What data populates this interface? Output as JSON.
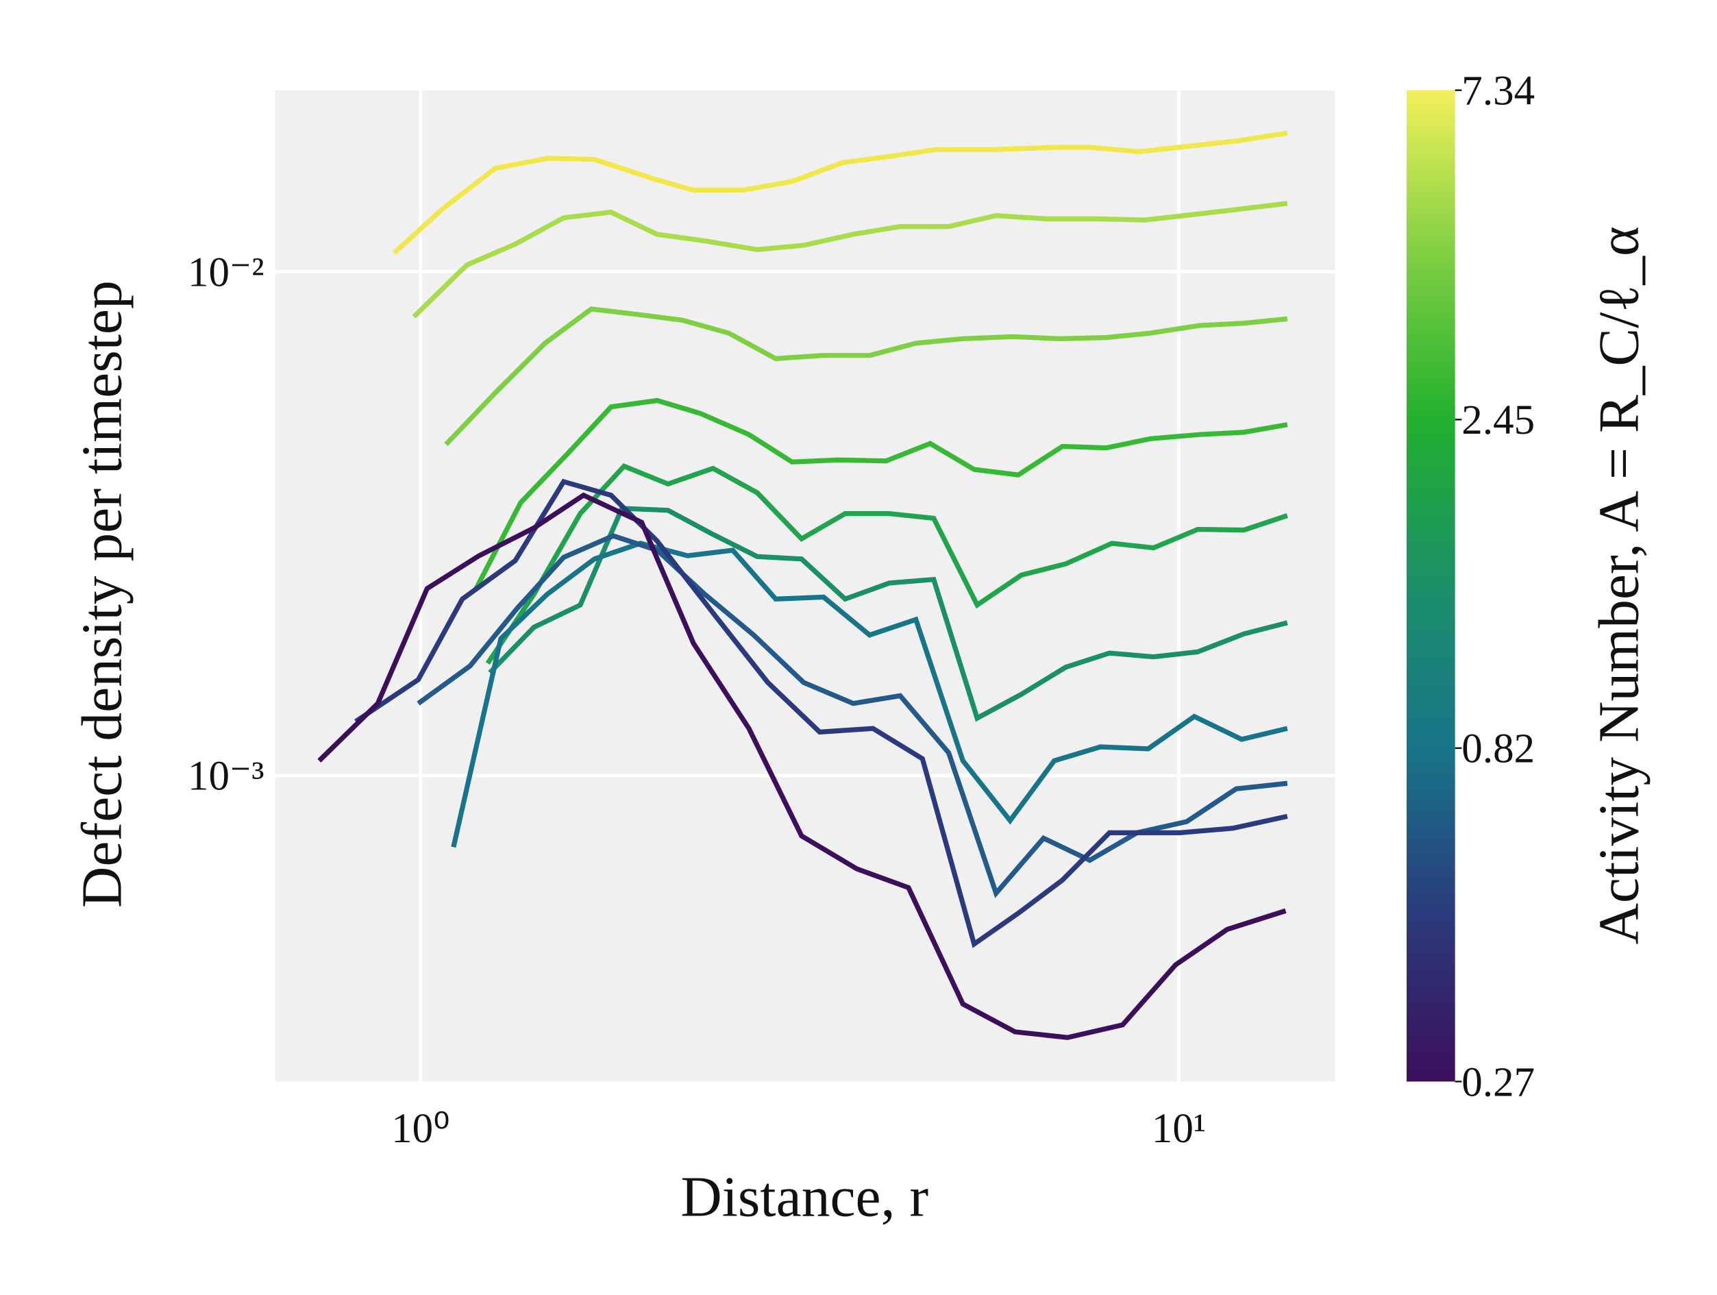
{
  "chart_data": {
    "type": "line",
    "xlabel": "Distance, r",
    "ylabel": "Defect density per timestep",
    "xscale": "log",
    "yscale": "log",
    "grid": true,
    "xlim": [
      0.643,
      16.07
    ],
    "ylim": [
      0.000247,
      0.02291
    ],
    "xticks": [
      {
        "value": 1,
        "label": "10⁰"
      },
      {
        "value": 10,
        "label": "10¹"
      }
    ],
    "yticks": [
      {
        "value": 0.01,
        "label": "10⁻²"
      },
      {
        "value": 0.001,
        "label": "10⁻³"
      }
    ],
    "series": [
      {
        "color": "#f2e74a",
        "x": [
          0.923,
          1.069,
          1.255,
          1.473,
          1.695,
          2.037,
          2.29,
          2.66,
          3.09,
          3.6,
          4.18,
          4.78,
          5.74,
          6.9,
          7.62,
          8.87,
          10.3,
          11.97,
          13.9
        ],
        "values": [
          0.01089,
          0.01332,
          0.01604,
          0.01679,
          0.0167,
          0.01525,
          0.01451,
          0.01451,
          0.0151,
          0.01645,
          0.01695,
          0.01747,
          0.01747,
          0.01765,
          0.01765,
          0.0173,
          0.01774,
          0.01819,
          0.01884
        ]
      },
      {
        "color": "#a9dc4a",
        "x": [
          0.98,
          1.151,
          1.333,
          1.544,
          1.783,
          2.051,
          2.37,
          2.78,
          3.2,
          3.72,
          4.29,
          4.97,
          5.74,
          6.67,
          7.76,
          9.02,
          10.48,
          12.1,
          13.9
        ],
        "values": [
          0.00814,
          0.01031,
          0.01134,
          0.01279,
          0.01312,
          0.01186,
          0.01151,
          0.01106,
          0.01128,
          0.01186,
          0.01229,
          0.01229,
          0.01292,
          0.01273,
          0.01273,
          0.01266,
          0.01299,
          0.01332,
          0.01366
        ]
      },
      {
        "color": "#7fcf43",
        "x": [
          1.08,
          1.255,
          1.459,
          1.679,
          1.937,
          2.215,
          2.55,
          2.94,
          3.4,
          3.91,
          4.5,
          5.19,
          6.04,
          6.95,
          8.02,
          9.17,
          10.66,
          12.18,
          13.9
        ],
        "values": [
          0.00454,
          0.00575,
          0.00721,
          0.00843,
          0.00822,
          0.00801,
          0.00755,
          0.00672,
          0.00682,
          0.00682,
          0.00721,
          0.00736,
          0.00743,
          0.00736,
          0.0074,
          0.00755,
          0.00782,
          0.0079,
          0.00806
        ]
      },
      {
        "color": "#38b935",
        "x": [
          1.182,
          1.355,
          1.56,
          1.783,
          2.051,
          2.34,
          2.71,
          3.09,
          3.56,
          4.11,
          4.7,
          5.37,
          6.14,
          7.02,
          8.02,
          9.17,
          10.66,
          12.18,
          13.9
        ],
        "values": [
          0.00234,
          0.00348,
          0.00434,
          0.00539,
          0.00555,
          0.00523,
          0.00475,
          0.00419,
          0.00423,
          0.00421,
          0.00456,
          0.00405,
          0.00395,
          0.0045,
          0.00447,
          0.00466,
          0.00475,
          0.0048,
          0.00497
        ]
      },
      {
        "color": "#22a44f",
        "x": [
          1.226,
          1.411,
          1.624,
          1.855,
          2.12,
          2.43,
          2.78,
          3.18,
          3.63,
          4.15,
          4.75,
          5.42,
          6.2,
          7.09,
          8.16,
          9.26,
          10.59,
          12.18,
          13.9
        ],
        "values": [
          0.00167,
          0.00229,
          0.00331,
          0.00411,
          0.00379,
          0.00407,
          0.00364,
          0.00295,
          0.00331,
          0.00331,
          0.00324,
          0.00218,
          0.0025,
          0.00263,
          0.00289,
          0.00283,
          0.00308,
          0.00307,
          0.00328
        ]
      },
      {
        "color": "#1b8f6a",
        "x": [
          1.234,
          1.411,
          1.624,
          1.843,
          2.12,
          2.43,
          2.78,
          3.18,
          3.63,
          4.15,
          4.75,
          5.42,
          6.2,
          7.09,
          8.1,
          9.26,
          10.59,
          12.18,
          13.9
        ],
        "values": [
          0.0016,
          0.00197,
          0.00218,
          0.00339,
          0.00336,
          0.00301,
          0.00272,
          0.00269,
          0.00224,
          0.00241,
          0.00245,
          0.0013,
          0.00145,
          0.00164,
          0.00175,
          0.00172,
          0.00176,
          0.00191,
          0.00201
        ]
      },
      {
        "color": "#187489",
        "x": [
          1.105,
          1.276,
          1.469,
          1.695,
          1.95,
          2.25,
          2.58,
          2.94,
          3.4,
          3.91,
          4.5,
          5.19,
          5.99,
          6.85,
          7.88,
          9.11,
          10.48,
          12.1,
          13.9
        ],
        "values": [
          0.000721,
          0.00187,
          0.00229,
          0.00269,
          0.00289,
          0.00273,
          0.0028,
          0.00224,
          0.00226,
          0.0019,
          0.00204,
          0.00107,
          0.000814,
          0.00107,
          0.00114,
          0.00113,
          0.00131,
          0.00118,
          0.00124
        ]
      },
      {
        "color": "#245a8a",
        "x": [
          0.993,
          1.162,
          1.342,
          1.544,
          1.795,
          2.051,
          2.37,
          2.75,
          3.2,
          3.72,
          4.29,
          4.97,
          5.74,
          6.63,
          7.63,
          8.81,
          10.24,
          11.9,
          13.9
        ],
        "values": [
          0.00139,
          0.00165,
          0.00215,
          0.00271,
          0.00299,
          0.0028,
          0.00229,
          0.0019,
          0.00153,
          0.00139,
          0.00144,
          0.00111,
          0.000584,
          0.000751,
          0.000679,
          0.00077,
          0.00081,
          0.000941,
          0.000965
        ]
      },
      {
        "color": "#2b3a7c",
        "x": [
          0.821,
          0.993,
          1.135,
          1.333,
          1.544,
          1.783,
          2.051,
          2.45,
          2.87,
          3.36,
          3.95,
          4.59,
          5.37,
          6.14,
          7.02,
          8.1,
          10.03,
          11.78,
          13.9
        ],
        "values": [
          0.00128,
          0.00155,
          0.00224,
          0.00267,
          0.00383,
          0.0036,
          0.00292,
          0.00207,
          0.00153,
          0.00122,
          0.00124,
          0.00108,
          0.000463,
          0.000533,
          0.00062,
          0.00077,
          0.00077,
          0.000786,
          0.00083
        ]
      },
      {
        "color": "#3c0f5a",
        "x": [
          0.735,
          0.878,
          1.02,
          1.194,
          1.411,
          1.64,
          1.957,
          2.29,
          2.71,
          3.18,
          3.76,
          4.4,
          5.19,
          6.08,
          7.13,
          8.43,
          9.9,
          11.58,
          13.83
        ],
        "values": [
          0.00107,
          0.00139,
          0.00235,
          0.00273,
          0.0031,
          0.0036,
          0.00318,
          0.00183,
          0.00124,
          0.000759,
          0.000653,
          0.000599,
          0.000352,
          0.00031,
          0.000302,
          0.00032,
          0.000421,
          0.000495,
          0.000539
        ]
      }
    ],
    "colorbar": {
      "label": "Activity Number, A = R_C/ℓ_α",
      "scale": "log",
      "lim": [
        0.27,
        7.34
      ],
      "ticks": [
        0.27,
        0.82,
        2.45,
        7.34
      ],
      "colors": [
        "#3c0f5a",
        "#2b3a7c",
        "#187489",
        "#1b8f6a",
        "#22b02e",
        "#7fcf43",
        "#f2f05a"
      ]
    }
  }
}
